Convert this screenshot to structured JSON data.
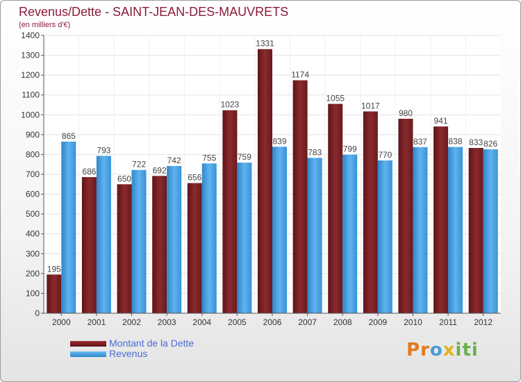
{
  "colors": {
    "title": "#8b1a3a",
    "dette": "#7a1e22",
    "revenus": "#3d9ae0",
    "grid": "#e2e2e2",
    "axis": "#555555",
    "legend_text": "#4d6bd9"
  },
  "logo": {
    "letters": [
      {
        "ch": "P",
        "color": "#e07a1e"
      },
      {
        "ch": "r",
        "color": "#e07a1e"
      },
      {
        "ch": "o",
        "color": "#4a9ad6"
      },
      {
        "ch": "x",
        "color": "#e0b31e"
      },
      {
        "ch": "i",
        "color": "#6ab04c"
      },
      {
        "ch": "t",
        "color": "#6ab04c"
      },
      {
        "ch": "i",
        "color": "#6ab04c"
      }
    ]
  },
  "chart_data": {
    "type": "bar",
    "title": "Revenus/Dette - SAINT-JEAN-DES-MAUVRETS",
    "subtitle": "(en milliers d'€)",
    "xlabel": "",
    "ylabel": "",
    "ylim": [
      0,
      1400
    ],
    "yticks": [
      0,
      100,
      200,
      300,
      400,
      500,
      600,
      700,
      800,
      900,
      1000,
      1100,
      1200,
      1300,
      1400
    ],
    "grid": true,
    "legend_position": "bottom-left",
    "categories": [
      "2000",
      "2001",
      "2002",
      "2003",
      "2004",
      "2005",
      "2006",
      "2007",
      "2008",
      "2009",
      "2010",
      "2011",
      "2012"
    ],
    "series": [
      {
        "name": "Montant de la Dette",
        "values": [
          195,
          686,
          650,
          692,
          656,
          1023,
          1331,
          1174,
          1055,
          1017,
          980,
          941,
          833
        ]
      },
      {
        "name": "Revenus",
        "values": [
          865,
          793,
          722,
          742,
          755,
          759,
          839,
          783,
          799,
          770,
          837,
          838,
          826
        ]
      }
    ]
  }
}
